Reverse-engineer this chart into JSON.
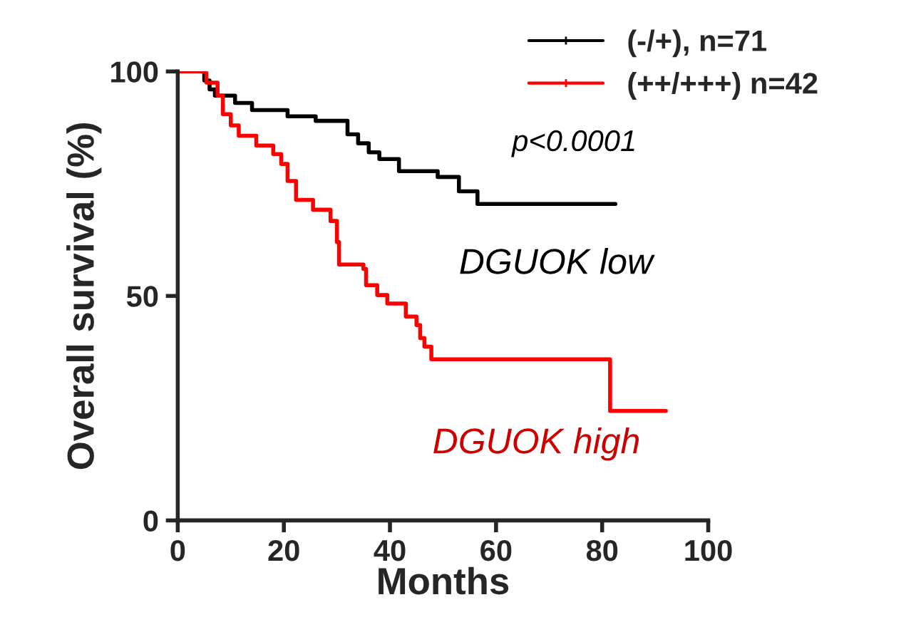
{
  "chart_data": {
    "type": "step",
    "xlabel": "Months",
    "ylabel": "Overall survival (%)",
    "xlim": [
      0,
      100
    ],
    "xticks": [
      0,
      20,
      40,
      60,
      80,
      100
    ],
    "ylim": [
      0,
      100
    ],
    "yticks": [
      0,
      50,
      100
    ],
    "legend": "top right",
    "grid": false,
    "series": [
      {
        "name": "(-/+), n=71",
        "color": "#000000",
        "x": [
          0,
          5,
          6,
          7,
          10.8,
          14,
          20.7,
          26,
          32,
          34,
          36,
          38,
          41.7,
          49,
          53,
          56.5,
          82.5
        ],
        "values": [
          100,
          98,
          96,
          94.6,
          93,
          91.4,
          90,
          89,
          86,
          84,
          82,
          80.5,
          77.8,
          76.5,
          73.3,
          70.5,
          70.5
        ]
      },
      {
        "name": "(++/+++) n=42",
        "color": "#ff0000",
        "x": [
          0,
          5.4,
          7.5,
          8.5,
          10,
          11.5,
          14.8,
          18,
          19.5,
          20.7,
          22.3,
          25.5,
          28.8,
          30,
          30.4,
          35,
          35.5,
          37.6,
          39.5,
          43,
          45,
          45.7,
          46.5,
          47.8,
          81.5,
          92
        ],
        "values": [
          100,
          97.5,
          94.6,
          90.5,
          88,
          85.7,
          83.5,
          81.6,
          79.4,
          75.6,
          71.4,
          69.2,
          66.7,
          62,
          57,
          56,
          52.4,
          50.2,
          48.3,
          45.4,
          43.5,
          40.6,
          38.7,
          35.9,
          24.4,
          24.4
        ]
      }
    ],
    "annotations": [
      "p<0.0001",
      "DGUOK low",
      "DGUOK high"
    ]
  }
}
